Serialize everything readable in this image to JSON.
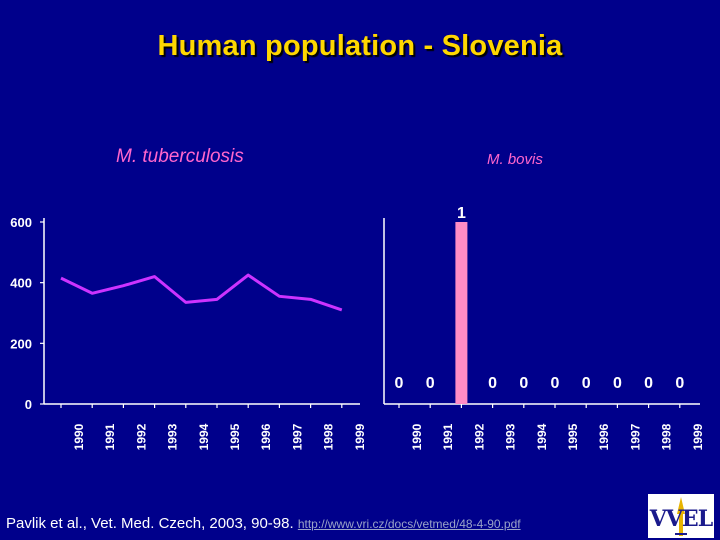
{
  "title": "Human population - Slovenia",
  "citation": "Pavlik et al., Vet. Med. Czech, 2003, 90-98.",
  "citation_link": "http://www.vri.cz/docs/vetmed/48-4-90.pdf",
  "logo": {
    "text": "VVEL",
    "icon": "vvel-logo-icon"
  },
  "colors": {
    "background": "#00008b",
    "title": "#ffd700",
    "series": "#cc33ff",
    "bar": "#ff8cc6",
    "subtitle": "#ff66cc",
    "axis": "#ffffff"
  },
  "chart_data": [
    {
      "type": "line",
      "title": "M. tuberculosis",
      "xlabel": "",
      "ylabel": "",
      "x": [
        "1990",
        "1991",
        "1992",
        "1993",
        "1994",
        "1995",
        "1996",
        "1997",
        "1998",
        "1999"
      ],
      "series": [
        {
          "values": [
            415,
            365,
            390,
            420,
            335,
            345,
            425,
            355,
            345,
            310
          ]
        }
      ],
      "ylim": [
        0,
        600
      ],
      "yticks": [
        0,
        200,
        400,
        600
      ],
      "grid": false,
      "legend": "none"
    },
    {
      "type": "bar",
      "title": "M. bovis",
      "xlabel": "",
      "ylabel": "",
      "categories": [
        "1990",
        "1991",
        "1992",
        "1993",
        "1994",
        "1995",
        "1996",
        "1997",
        "1998",
        "1999"
      ],
      "values": [
        0,
        0,
        1,
        0,
        0,
        0,
        0,
        0,
        0,
        0
      ],
      "data_labels": [
        "0",
        "0",
        "1",
        "0",
        "0",
        "0",
        "0",
        "0",
        "0",
        "0"
      ],
      "ylim": [
        0,
        1
      ],
      "grid": false,
      "legend": "none"
    }
  ]
}
